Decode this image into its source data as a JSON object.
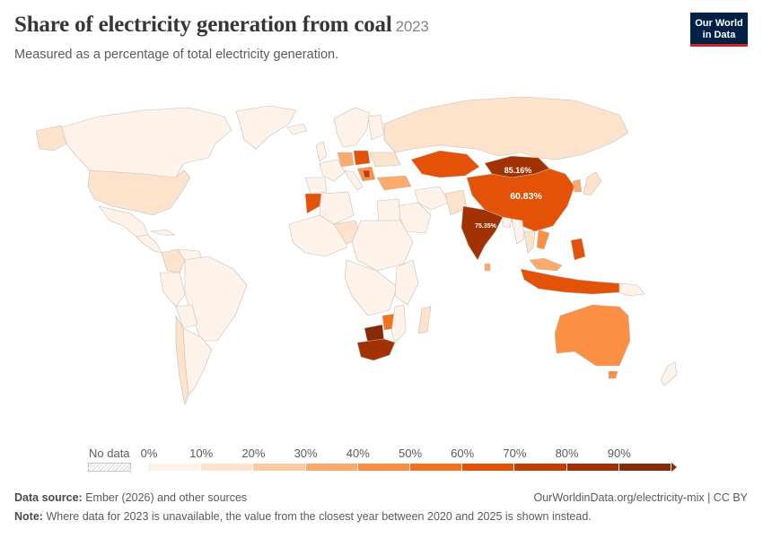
{
  "header": {
    "title": "Share of electricity generation from coal",
    "year": "2023",
    "subtitle": "Measured as a percentage of total electricity generation."
  },
  "logo": {
    "line1": "Our World",
    "line2": "in Data",
    "bg_color": "#002147",
    "accent_color": "#ce261e"
  },
  "map": {
    "ocean_color": "#ffffff",
    "border_color": "#c0c0c0",
    "labels": [
      {
        "country": "Mongolia",
        "text": "85.16%"
      },
      {
        "country": "China",
        "text": "60.83%"
      },
      {
        "country": "India",
        "text": "75.35%"
      }
    ],
    "country_values": [
      {
        "country": "United States",
        "value": 16
      },
      {
        "country": "Canada",
        "value": 5
      },
      {
        "country": "Mexico",
        "value": 5
      },
      {
        "country": "Greenland",
        "value": 0
      },
      {
        "country": "Brazil",
        "value": 3
      },
      {
        "country": "Colombia",
        "value": 10
      },
      {
        "country": "Chile",
        "value": 17
      },
      {
        "country": "Peru",
        "value": 2
      },
      {
        "country": "Argentina",
        "value": 1
      },
      {
        "country": "Russia",
        "value": 17
      },
      {
        "country": "Kazakhstan",
        "value": 62
      },
      {
        "country": "Mongolia",
        "value": 85.16
      },
      {
        "country": "China",
        "value": 60.83
      },
      {
        "country": "India",
        "value": 75.35
      },
      {
        "country": "Indonesia",
        "value": 62
      },
      {
        "country": "Philippines",
        "value": 62
      },
      {
        "country": "Vietnam",
        "value": 46
      },
      {
        "country": "Thailand",
        "value": 17
      },
      {
        "country": "Malaysia",
        "value": 40
      },
      {
        "country": "Japan",
        "value": 28
      },
      {
        "country": "South Korea",
        "value": 33
      },
      {
        "country": "Australia",
        "value": 47
      },
      {
        "country": "New Zealand",
        "value": 3
      },
      {
        "country": "South Africa",
        "value": 82
      },
      {
        "country": "Botswana",
        "value": 95
      },
      {
        "country": "Zimbabwe",
        "value": 55
      },
      {
        "country": "Mozambique",
        "value": 5
      },
      {
        "country": "Morocco",
        "value": 64
      },
      {
        "country": "Niger",
        "value": 15
      },
      {
        "country": "Nigeria",
        "value": 0
      },
      {
        "country": "Turkey",
        "value": 35
      },
      {
        "country": "Poland",
        "value": 61
      },
      {
        "country": "Germany",
        "value": 26
      },
      {
        "country": "Ukraine",
        "value": 22
      },
      {
        "country": "Serbia",
        "value": 65
      },
      {
        "country": "Bulgaria",
        "value": 33
      },
      {
        "country": "Czechia",
        "value": 40
      },
      {
        "country": "United Kingdom",
        "value": 1
      },
      {
        "country": "France",
        "value": 0
      },
      {
        "country": "Spain",
        "value": 1
      },
      {
        "country": "Sweden",
        "value": 0
      },
      {
        "country": "Norway",
        "value": 0
      },
      {
        "country": "Finland",
        "value": 5
      },
      {
        "country": "Saudi Arabia",
        "value": 0
      },
      {
        "country": "Iran",
        "value": 0
      },
      {
        "country": "Egypt",
        "value": 0
      },
      {
        "country": "Algeria",
        "value": 0
      },
      {
        "country": "Madagascar",
        "value": 20
      },
      {
        "country": "Pakistan",
        "value": 17
      },
      {
        "country": "Bangladesh",
        "value": 9
      },
      {
        "country": "Sri Lanka",
        "value": 35
      },
      {
        "country": "Papua New Guinea",
        "value": 5
      }
    ]
  },
  "legend": {
    "no_data_label": "No data",
    "ticks": [
      "0%",
      "10%",
      "20%",
      "30%",
      "40%",
      "50%",
      "60%",
      "70%",
      "80%",
      "90%"
    ],
    "colors": [
      "#fff2e8",
      "#fde2cc",
      "#fdcb9d",
      "#fcaa6c",
      "#fb8f43",
      "#f5711e",
      "#e35207",
      "#c53d04",
      "#a33203",
      "#872a06"
    ]
  },
  "footer": {
    "source_label": "Data source:",
    "source_text": "Ember (2026) and other sources",
    "url_text": "OurWorldinData.org/electricity-mix | CC BY",
    "note_label": "Note:",
    "note_text": "Where data for 2023 is unavailable, the value from the closest year between 2020 and 2025 is shown instead."
  }
}
